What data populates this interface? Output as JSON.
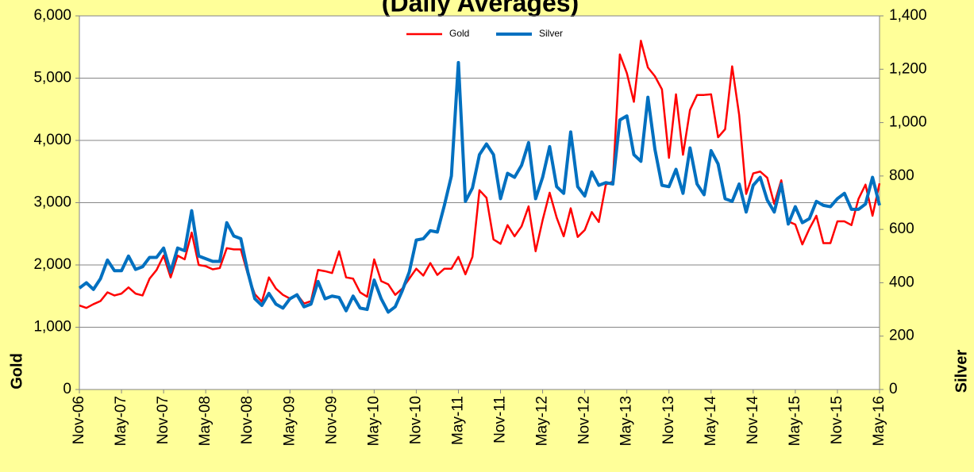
{
  "chart_data": {
    "type": "line",
    "title": "(Daily Averages)",
    "y_label": "Gold",
    "y2_label": "Silver",
    "categories": [
      "Nov-06",
      null,
      null,
      null,
      null,
      null,
      "May-07",
      null,
      null,
      null,
      null,
      null,
      "Nov-07",
      null,
      null,
      null,
      null,
      null,
      "May-08",
      null,
      null,
      null,
      null,
      null,
      "Nov-08",
      null,
      null,
      null,
      null,
      null,
      "May-09",
      null,
      null,
      null,
      null,
      null,
      "Nov-09",
      null,
      null,
      null,
      null,
      null,
      "May-10",
      null,
      null,
      null,
      null,
      null,
      "Nov-10",
      null,
      null,
      null,
      null,
      null,
      "May-11",
      null,
      null,
      null,
      null,
      null,
      "Nov-11",
      null,
      null,
      null,
      null,
      null,
      "May-12",
      null,
      null,
      null,
      null,
      null,
      "Nov-12",
      null,
      null,
      null,
      null,
      null,
      "May-13",
      null,
      null,
      null,
      null,
      null,
      "Nov-13",
      null,
      null,
      null,
      null,
      null,
      "May-14",
      null,
      null,
      null,
      null,
      null,
      "Nov-14",
      null,
      null,
      null,
      null,
      null,
      "May-15",
      null,
      null,
      null,
      null,
      null,
      "Nov-15",
      null,
      null,
      null,
      null,
      null,
      "May-16"
    ],
    "series": [
      {
        "name": "Gold",
        "color": "#ff0000",
        "width": 2.5,
        "values": [
          1350,
          1310,
          1370,
          1420,
          1560,
          1510,
          1540,
          1640,
          1540,
          1510,
          1780,
          1920,
          2150,
          1800,
          2150,
          2090,
          2520,
          2000,
          1980,
          1930,
          1950,
          2270,
          2250,
          2250,
          1850,
          1530,
          1410,
          1800,
          1620,
          1520,
          1460,
          1530,
          1380,
          1420,
          1920,
          1900,
          1870,
          2220,
          1800,
          1780,
          1560,
          1490,
          2090,
          1740,
          1690,
          1520,
          1620,
          1780,
          1940,
          1830,
          2030,
          1840,
          1940,
          1940,
          2130,
          1850,
          2130,
          3200,
          3080,
          2410,
          2340,
          2640,
          2460,
          2620,
          2940,
          2220,
          2720,
          3160,
          2760,
          2460,
          2910,
          2450,
          2560,
          2850,
          2690,
          3290,
          3340,
          5380,
          5080,
          4620,
          5600,
          5170,
          5030,
          4820,
          3720,
          4740,
          3770,
          4490,
          4730,
          4730,
          4740,
          4050,
          4180,
          5190,
          4410,
          3140,
          3470,
          3500,
          3400,
          2980,
          3360,
          2700,
          2650,
          2330,
          2580,
          2790,
          2350,
          2350,
          2700,
          2700,
          2640,
          3060,
          3290,
          2790,
          3310
        ]
      },
      {
        "name": "Silver",
        "color": "#0070c0",
        "width": 4,
        "axis": "y2",
        "values": [
          380,
          400,
          375,
          415,
          485,
          445,
          445,
          500,
          450,
          460,
          495,
          495,
          530,
          440,
          530,
          520,
          670,
          500,
          490,
          480,
          480,
          625,
          575,
          565,
          440,
          340,
          315,
          360,
          320,
          305,
          340,
          355,
          310,
          320,
          405,
          340,
          350,
          345,
          295,
          350,
          305,
          300,
          410,
          340,
          290,
          310,
          370,
          440,
          560,
          565,
          595,
          590,
          690,
          800,
          1225,
          705,
          755,
          880,
          920,
          880,
          715,
          810,
          795,
          840,
          925,
          715,
          795,
          910,
          760,
          735,
          965,
          760,
          725,
          815,
          765,
          775,
          770,
          1010,
          1025,
          880,
          855,
          1095,
          900,
          765,
          760,
          825,
          735,
          905,
          770,
          730,
          895,
          845,
          715,
          705,
          770,
          665,
          765,
          795,
          710,
          665,
          770,
          620,
          685,
          625,
          640,
          705,
          690,
          685,
          715,
          735,
          675,
          675,
          695,
          795,
          690
        ]
      }
    ],
    "ylim": [
      0,
      6000
    ],
    "yticks": [
      0,
      {
        "value": 1000,
        "label": "1,000"
      },
      {
        "value": 2000,
        "label": "2,000"
      },
      {
        "value": 3000,
        "label": "3,000"
      },
      {
        "value": 4000,
        "label": "4,000"
      },
      {
        "value": 5000,
        "label": "5,000"
      },
      {
        "value": 6000,
        "label": "6,000"
      }
    ],
    "y2lim": [
      0,
      1400
    ],
    "y2ticks": [
      0,
      200,
      400,
      600,
      800,
      {
        "value": 1000,
        "label": "1,000"
      },
      {
        "value": 1200,
        "label": "1,200"
      },
      {
        "value": 1400,
        "label": "1,400"
      }
    ],
    "grid": true,
    "legend": "top"
  }
}
